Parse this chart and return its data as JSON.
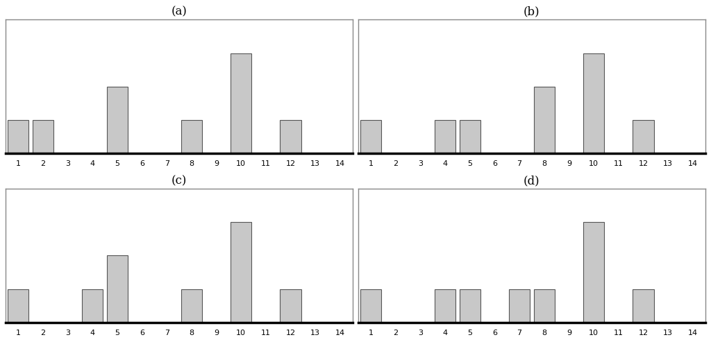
{
  "panels": [
    {
      "label": "(a)",
      "values": [
        1,
        1,
        0,
        0,
        2,
        0,
        0,
        1,
        0,
        3,
        0,
        1,
        0,
        0
      ]
    },
    {
      "label": "(b)",
      "values": [
        1,
        0,
        0,
        1,
        1,
        0,
        0,
        2,
        0,
        3,
        0,
        1,
        0,
        0
      ]
    },
    {
      "label": "(c)",
      "values": [
        1,
        0,
        0,
        1,
        2,
        0,
        0,
        1,
        0,
        3,
        0,
        1,
        0,
        0
      ]
    },
    {
      "label": "(d)",
      "values": [
        1,
        0,
        0,
        1,
        1,
        0,
        1,
        1,
        0,
        3,
        0,
        1,
        0,
        0
      ]
    }
  ],
  "xlim": [
    0.5,
    14.5
  ],
  "xticks": [
    1,
    2,
    3,
    4,
    5,
    6,
    7,
    8,
    9,
    10,
    11,
    12,
    13,
    14
  ],
  "bar_color": "#c8c8c8",
  "bar_edgecolor": "#555555",
  "background_color": "#ffffff",
  "title_fontsize": 12,
  "tick_fontsize": 8,
  "ylim": [
    0,
    4
  ],
  "spine_color_box": "#888888",
  "spine_color_bottom": "#000000"
}
